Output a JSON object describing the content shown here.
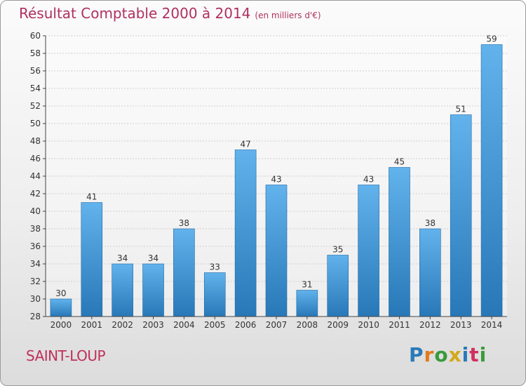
{
  "header": {
    "title": "Résultat Comptable 2000 à 2014",
    "subtitle": "(en milliers d'€)"
  },
  "footer": {
    "place": "SAINT-LOUP",
    "logo": "Proxiti",
    "logo_letters": [
      {
        "char": "P",
        "color": "#2a7ab8"
      },
      {
        "char": "r",
        "color": "#e07a1c"
      },
      {
        "char": "o",
        "color": "#3a9a3a"
      },
      {
        "char": "x",
        "color": "#d4a817"
      },
      {
        "char": "i",
        "color": "#2a7ab8"
      },
      {
        "char": "t",
        "color": "#d03060"
      },
      {
        "char": "i",
        "color": "#3a9a3a"
      }
    ]
  },
  "colors": {
    "bar_top": "#62b2ec",
    "bar_bottom": "#2878b8",
    "title": "#b03060",
    "axis": "#444444",
    "grid": "#cfcfcf"
  },
  "chart_data": {
    "type": "bar",
    "title": "Résultat Comptable 2000 à 2014",
    "subtitle": "(en milliers d'€)",
    "categories": [
      "2000",
      "2001",
      "2002",
      "2003",
      "2004",
      "2005",
      "2006",
      "2007",
      "2008",
      "2009",
      "2010",
      "2011",
      "2012",
      "2013",
      "2014"
    ],
    "values": [
      30,
      41,
      34,
      34,
      38,
      33,
      47,
      43,
      31,
      35,
      43,
      45,
      38,
      51,
      59
    ],
    "xlabel": "",
    "ylabel": "",
    "ylim": [
      28,
      60
    ],
    "ytick_step": 2,
    "grid": true
  }
}
